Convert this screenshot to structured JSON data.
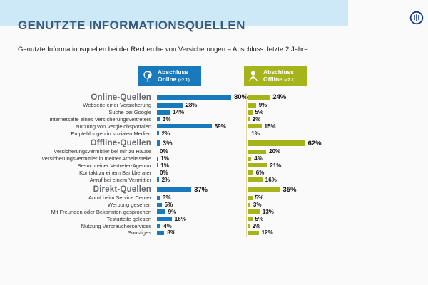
{
  "slide": {
    "title": "GENUTZTE INFORMATIONSQUELLEN",
    "subtitle": "Genutzte Informationsquellen bei der Recherche von Versicherungen – Abschluss: letzte 2 Jahre",
    "logo": "allianz-logo"
  },
  "colors": {
    "band": "#cde8f6",
    "title": "#3a5a7d",
    "online": "#1879bd",
    "offline": "#a6b41c",
    "logo_blue": "#123a8f"
  },
  "legend": {
    "online": {
      "line1": "Abschluss",
      "line2": "Online",
      "suffix": "(<2 J.)",
      "color": "#1879bd",
      "icon": "globe-icon"
    },
    "offline": {
      "line1": "Abschluss",
      "line2": "Offline",
      "suffix": "(<2 J.)",
      "color": "#a6b41c",
      "icon": "person-icon"
    }
  },
  "chart_data": {
    "type": "bar",
    "orientation": "horizontal",
    "unit": "%",
    "value_labels": true,
    "xlim": [
      0,
      100
    ],
    "series": [
      {
        "name": "Abschluss Online (<2 J.)",
        "color": "#1879bd"
      },
      {
        "name": "Abschluss Offline (<2 J.)",
        "color": "#a6b41c"
      }
    ],
    "sections": [
      {
        "header": "Online-Quellen",
        "online": 80,
        "offline": 24,
        "items": [
          {
            "label": "Webseite einer Versicherung",
            "online": 28,
            "offline": 9
          },
          {
            "label": "Suche bei Google",
            "online": 14,
            "offline": 5
          },
          {
            "label": "Internetseite eines Versicherungsvertreters",
            "online": 3,
            "offline": 2
          },
          {
            "label": "Nutzung von Vergleichsportalen",
            "online": 59,
            "offline": 15
          },
          {
            "label": "Empfehlungen in sozialen Medien",
            "online": 2,
            "offline": 1
          }
        ]
      },
      {
        "header": "Offline-Quellen",
        "online": 3,
        "offline": 62,
        "items": [
          {
            "label": "Versicherungsvermittler bei mir zu Hause",
            "online": 0,
            "offline": 20
          },
          {
            "label": "Versicherungsvermittler in meiner Arbeitsstelle",
            "online": 1,
            "offline": 4
          },
          {
            "label": "Besuch einer Vertreter-Agentur",
            "online": 1,
            "offline": 21
          },
          {
            "label": "Kontakt zu einem Bankberater",
            "online": 0,
            "offline": 6
          },
          {
            "label": "Anruf bei einem Vermittler",
            "online": 2,
            "offline": 16
          }
        ]
      },
      {
        "header": "Direkt-Quellen",
        "online": 37,
        "offline": 35,
        "items": [
          {
            "label": "Anruf beim Service Center",
            "online": 3,
            "offline": 5
          },
          {
            "label": "Werbung gesehen",
            "online": 5,
            "offline": 3
          },
          {
            "label": "Mit Freunden oder Bekannten gesprochen",
            "online": 9,
            "offline": 13
          },
          {
            "label": "Testurteile gelesen",
            "online": 16,
            "offline": 5
          },
          {
            "label": "Nutzung Verbraucherservices",
            "online": 4,
            "offline": 2
          },
          {
            "label": "Sonstiges",
            "online": 8,
            "offline": 12
          }
        ]
      }
    ]
  }
}
